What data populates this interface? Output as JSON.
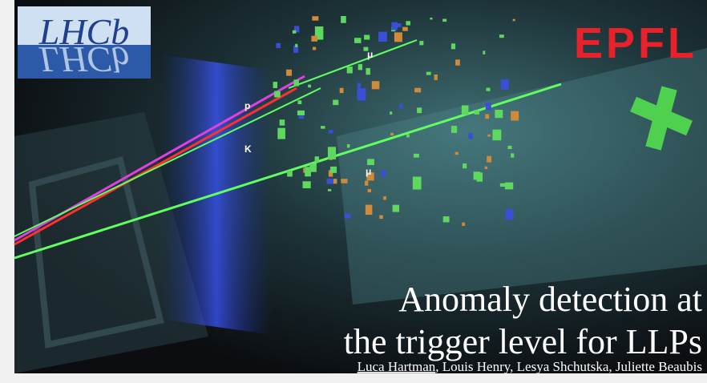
{
  "logo": {
    "text": "LHCb",
    "partner": "EPFL"
  },
  "particle_labels": [
    "p",
    "K",
    "μ",
    "μ"
  ],
  "title": {
    "line1": "Anomaly detection at",
    "line2": "the trigger level for LLPs"
  },
  "authors": {
    "presenter": "Luca Hartman",
    "others": ", Louis Henry, Lesya Shchutska, Juliette Beaubis"
  }
}
